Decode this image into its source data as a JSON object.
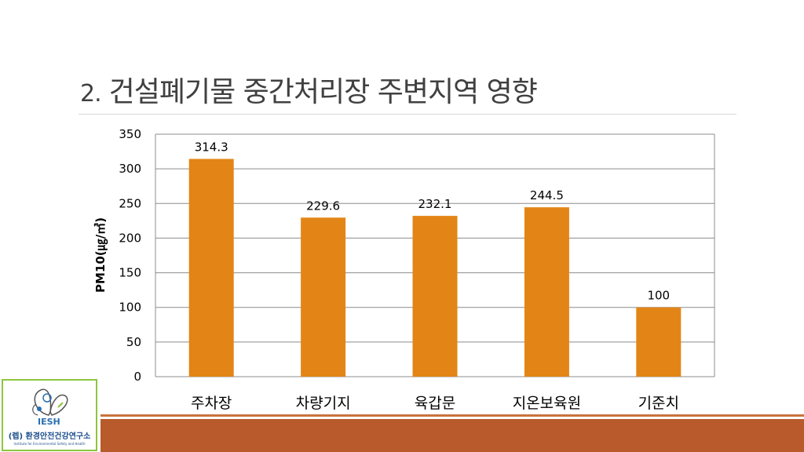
{
  "slide": {
    "title_number": "2.",
    "title_text": "건설폐기물 중간처리장 주변지역 영향"
  },
  "logo": {
    "acronym": "IESH",
    "org_name": "(렙) 환경안전건강연구소",
    "org_sub": "Institute for Environmental Safety and Health"
  },
  "colors": {
    "bar": "#e38516",
    "gridline": "#8c8c8c",
    "footer": "#b85a2b",
    "logo_border": "#8cc63e"
  },
  "chart_data": {
    "type": "bar",
    "title": "",
    "xlabel": "",
    "ylabel": "PM10(㎍/㎥)",
    "categories": [
      "주차장",
      "차량기지",
      "육갑문",
      "지온보육원",
      "기준치"
    ],
    "values": [
      314.3,
      229.6,
      232.1,
      244.5,
      100
    ],
    "value_labels": [
      "314.3",
      "229.6",
      "232.1",
      "244.5",
      "100"
    ],
    "ylim": [
      0,
      350
    ],
    "yticks": [
      0,
      50,
      100,
      150,
      200,
      250,
      300,
      350
    ],
    "grid": true,
    "legend": "none"
  }
}
